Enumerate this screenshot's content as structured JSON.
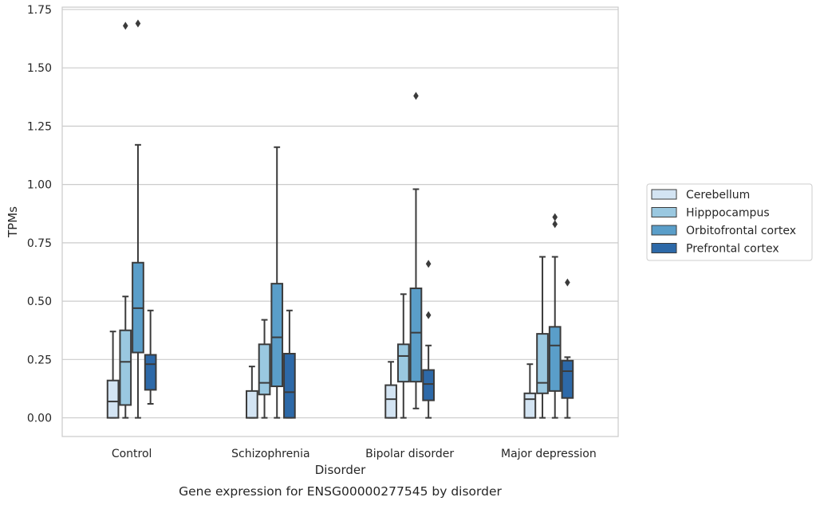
{
  "chart_data": {
    "type": "box",
    "title": "",
    "caption": "Gene expression for ENSG00000277545 by disorder",
    "xlabel": "Disorder",
    "ylabel": "TPMs",
    "ylim": [
      -0.08,
      1.76
    ],
    "yticks": [
      "0.00",
      "0.25",
      "0.50",
      "0.75",
      "1.00",
      "1.25",
      "1.50",
      "1.75"
    ],
    "grid": "horizontal",
    "legend_position": "right",
    "categories": [
      "Control",
      "Schizophrenia",
      "Bipolar disorder",
      "Major depression"
    ],
    "series": [
      {
        "name": "Cerebellum",
        "color": "#d3e4f3",
        "boxes": [
          {
            "whisker_low": 0.0,
            "q1": 0.0,
            "median": 0.07,
            "q3": 0.16,
            "whisker_high": 0.37,
            "outliers": []
          },
          {
            "whisker_low": 0.0,
            "q1": 0.0,
            "median": 0.0,
            "q3": 0.115,
            "whisker_high": 0.22,
            "outliers": []
          },
          {
            "whisker_low": 0.0,
            "q1": 0.0,
            "median": 0.08,
            "q3": 0.14,
            "whisker_high": 0.24,
            "outliers": []
          },
          {
            "whisker_low": 0.0,
            "q1": 0.0,
            "median": 0.08,
            "q3": 0.105,
            "whisker_high": 0.23,
            "outliers": []
          }
        ]
      },
      {
        "name": "Hipppocampus",
        "color": "#9ac8e0",
        "boxes": [
          {
            "whisker_low": 0.0,
            "q1": 0.055,
            "median": 0.24,
            "q3": 0.375,
            "whisker_high": 0.52,
            "outliers": [
              1.68
            ]
          },
          {
            "whisker_low": 0.0,
            "q1": 0.1,
            "median": 0.15,
            "q3": 0.315,
            "whisker_high": 0.42,
            "outliers": []
          },
          {
            "whisker_low": 0.0,
            "q1": 0.155,
            "median": 0.265,
            "q3": 0.315,
            "whisker_high": 0.53,
            "outliers": []
          },
          {
            "whisker_low": 0.0,
            "q1": 0.105,
            "median": 0.15,
            "q3": 0.36,
            "whisker_high": 0.69,
            "outliers": []
          }
        ]
      },
      {
        "name": "Orbitofrontal cortex",
        "color": "#5a9ec9",
        "boxes": [
          {
            "whisker_low": 0.0,
            "q1": 0.28,
            "median": 0.47,
            "q3": 0.665,
            "whisker_high": 1.17,
            "outliers": [
              1.69
            ]
          },
          {
            "whisker_low": 0.0,
            "q1": 0.135,
            "median": 0.345,
            "q3": 0.575,
            "whisker_high": 1.16,
            "outliers": []
          },
          {
            "whisker_low": 0.04,
            "q1": 0.155,
            "median": 0.365,
            "q3": 0.555,
            "whisker_high": 0.98,
            "outliers": [
              1.38
            ]
          },
          {
            "whisker_low": 0.0,
            "q1": 0.115,
            "median": 0.31,
            "q3": 0.39,
            "whisker_high": 0.69,
            "outliers": [
              0.83,
              0.86
            ]
          }
        ]
      },
      {
        "name": "Prefrontal cortex",
        "color": "#2d69a8",
        "boxes": [
          {
            "whisker_low": 0.06,
            "q1": 0.12,
            "median": 0.23,
            "q3": 0.27,
            "whisker_high": 0.46,
            "outliers": []
          },
          {
            "whisker_low": 0.0,
            "q1": 0.0,
            "median": 0.11,
            "q3": 0.275,
            "whisker_high": 0.46,
            "outliers": []
          },
          {
            "whisker_low": 0.0,
            "q1": 0.075,
            "median": 0.145,
            "q3": 0.205,
            "whisker_high": 0.31,
            "outliers": [
              0.44,
              0.66
            ]
          },
          {
            "whisker_low": 0.0,
            "q1": 0.085,
            "median": 0.2,
            "q3": 0.245,
            "whisker_high": 0.26,
            "outliers": [
              0.58
            ]
          }
        ]
      }
    ]
  }
}
